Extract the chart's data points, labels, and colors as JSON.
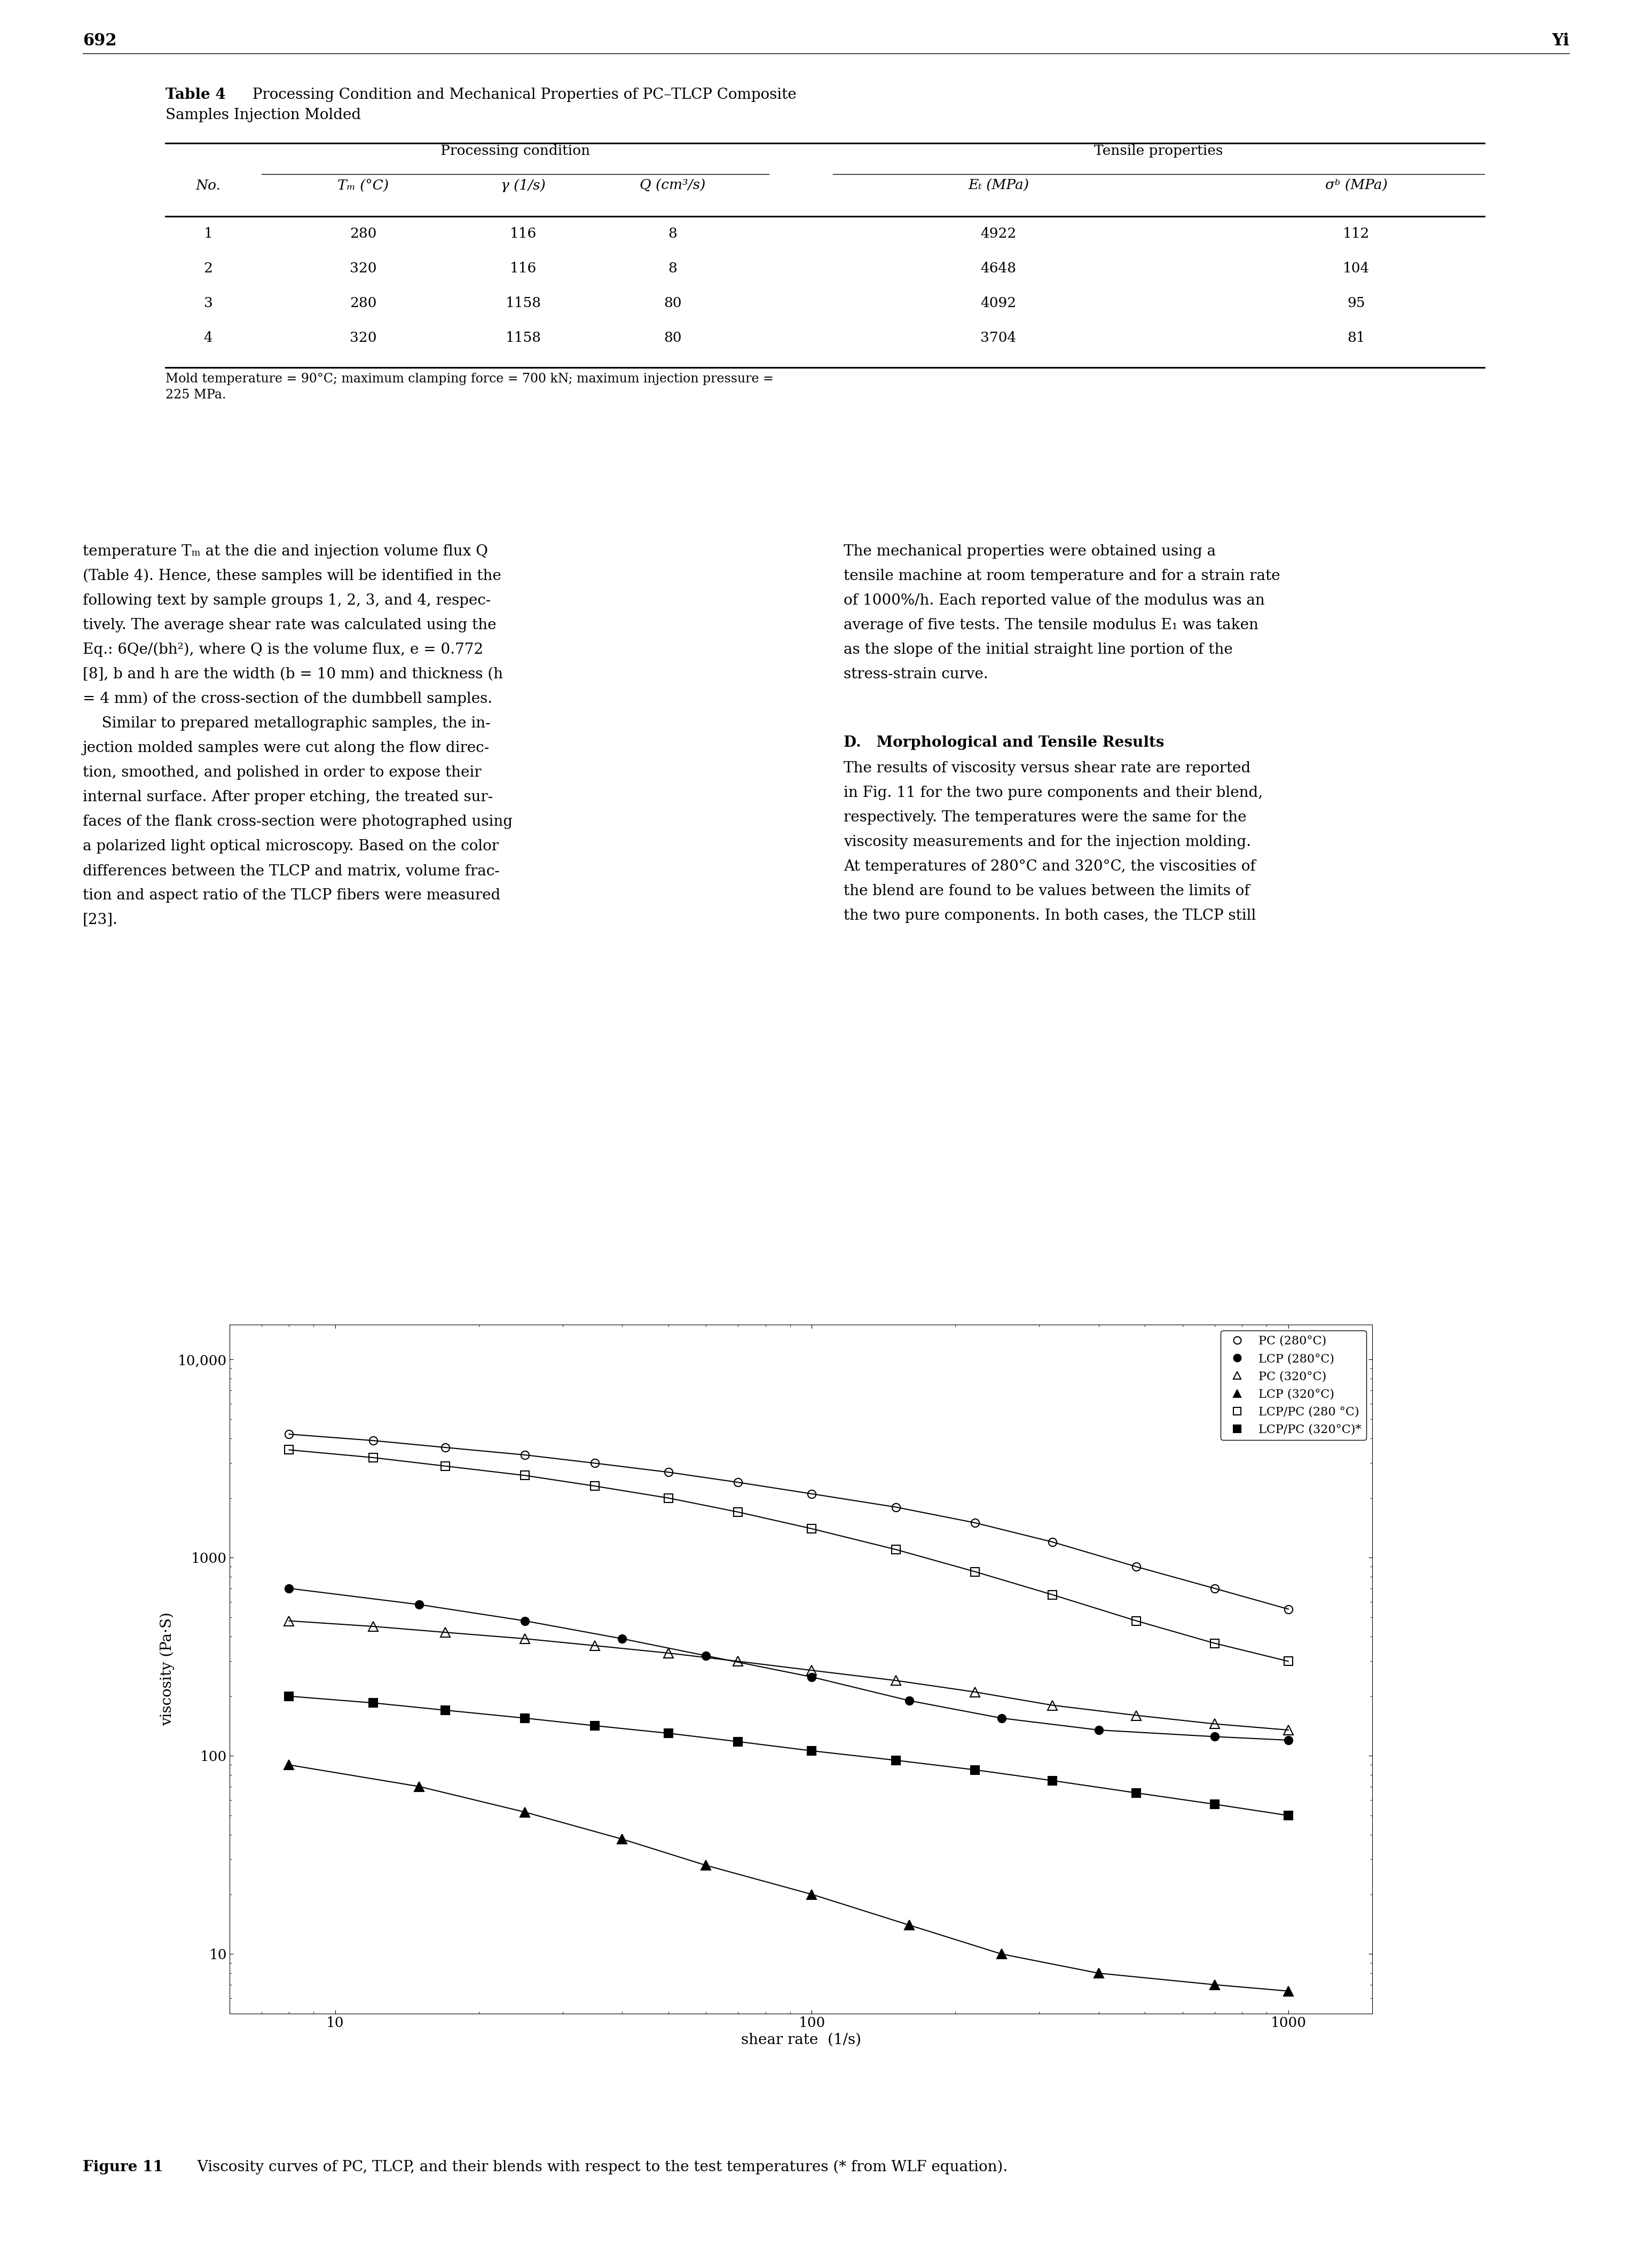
{
  "page_number": "692",
  "page_author": "Yi",
  "table_title_bold": "Table 4",
  "table_title_rest": "  Processing Condition and Mechanical Properties of PC–TLCP Composite",
  "table_title_line2": "Samples Injection Molded",
  "col_group1": "Processing condition",
  "col_group2": "Tensile properties",
  "table_data": [
    [
      "1",
      "280",
      "116",
      "8",
      "4922",
      "112"
    ],
    [
      "2",
      "320",
      "116",
      "8",
      "4648",
      "104"
    ],
    [
      "3",
      "280",
      "1158",
      "80",
      "4092",
      "95"
    ],
    [
      "4",
      "320",
      "1158",
      "80",
      "3704",
      "81"
    ]
  ],
  "table_footnote1": "Mold temperature = 90°C; maximum clamping force = 700 kN; maximum injection pressure =",
  "table_footnote2": "225 MPa.",
  "text_left_col": [
    "temperature Tₘ at the die and injection volume flux Q",
    "(Table 4). Hence, these samples will be identified in the",
    "following text by sample groups 1, 2, 3, and 4, respec-",
    "tively. The average shear rate was calculated using the",
    "Eq.: 6Qe/(bh²), where Q is the volume flux, e = 0.772",
    "[8], b and h are the width (b = 10 mm) and thickness (h",
    "= 4 mm) of the cross-section of the dumbbell samples.",
    "    Similar to prepared metallographic samples, the in-",
    "jection molded samples were cut along the flow direc-",
    "tion, smoothed, and polished in order to expose their",
    "internal surface. After proper etching, the treated sur-",
    "faces of the flank cross-section were photographed using",
    "a polarized light optical microscopy. Based on the color",
    "differences between the TLCP and matrix, volume frac-",
    "tion and aspect ratio of the TLCP fibers were measured",
    "[23]."
  ],
  "text_right_p1": [
    "The mechanical properties were obtained using a",
    "tensile machine at room temperature and for a strain rate",
    "of 1000%/h. Each reported value of the modulus was an",
    "average of five tests. The tensile modulus E₁ was taken",
    "as the slope of the initial straight line portion of the",
    "stress-strain curve."
  ],
  "section_d": "D.   Morphological and Tensile Results",
  "text_right_p2": [
    "The results of viscosity versus shear rate are reported",
    "in Fig. 11 for the two pure components and their blend,",
    "respectively. The temperatures were the same for the",
    "viscosity measurements and for the injection molding.",
    "At temperatures of 280°C and 320°C, the viscosities of",
    "the blend are found to be values between the limits of",
    "the two pure components. In both cases, the TLCP still"
  ],
  "plot_series": [
    {
      "label": "PC (280°C)",
      "x": [
        8,
        12,
        17,
        25,
        35,
        50,
        70,
        100,
        150,
        220,
        320,
        480,
        700,
        1000
      ],
      "y": [
        4200,
        3900,
        3600,
        3300,
        3000,
        2700,
        2400,
        2100,
        1800,
        1500,
        1200,
        900,
        700,
        550
      ],
      "marker": "o",
      "filled": false
    },
    {
      "label": "LCP (280°C)",
      "x": [
        8,
        15,
        25,
        40,
        60,
        100,
        160,
        250,
        400,
        700,
        1000
      ],
      "y": [
        700,
        580,
        480,
        390,
        320,
        250,
        190,
        155,
        135,
        125,
        120
      ],
      "marker": "o",
      "filled": true
    },
    {
      "label": "PC (320°C)",
      "x": [
        8,
        12,
        17,
        25,
        35,
        50,
        70,
        100,
        150,
        220,
        320,
        480,
        700,
        1000
      ],
      "y": [
        480,
        450,
        420,
        390,
        360,
        330,
        300,
        270,
        240,
        210,
        180,
        160,
        145,
        135
      ],
      "marker": "^",
      "filled": false
    },
    {
      "label": "LCP (320°C)",
      "x": [
        8,
        15,
        25,
        40,
        60,
        100,
        160,
        250,
        400,
        700,
        1000
      ],
      "y": [
        90,
        70,
        52,
        38,
        28,
        20,
        14,
        10,
        8,
        7,
        6.5
      ],
      "marker": "^",
      "filled": true
    },
    {
      "label": "LCP/PC (280 °C)",
      "x": [
        8,
        12,
        17,
        25,
        35,
        50,
        70,
        100,
        150,
        220,
        320,
        480,
        700,
        1000
      ],
      "y": [
        3500,
        3200,
        2900,
        2600,
        2300,
        2000,
        1700,
        1400,
        1100,
        850,
        650,
        480,
        370,
        300
      ],
      "marker": "s",
      "filled": false
    },
    {
      "label": "LCP/PC (320°C)*",
      "x": [
        8,
        12,
        17,
        25,
        35,
        50,
        70,
        100,
        150,
        220,
        320,
        480,
        700,
        1000
      ],
      "y": [
        200,
        185,
        170,
        155,
        142,
        130,
        118,
        106,
        95,
        85,
        75,
        65,
        57,
        50
      ],
      "marker": "s",
      "filled": true
    }
  ],
  "figure_caption_bold": "Figure 11",
  "figure_caption_rest": "   Viscosity curves of PC, TLCP, and their blends with respect to the test temperatures (* from WLF equation)."
}
